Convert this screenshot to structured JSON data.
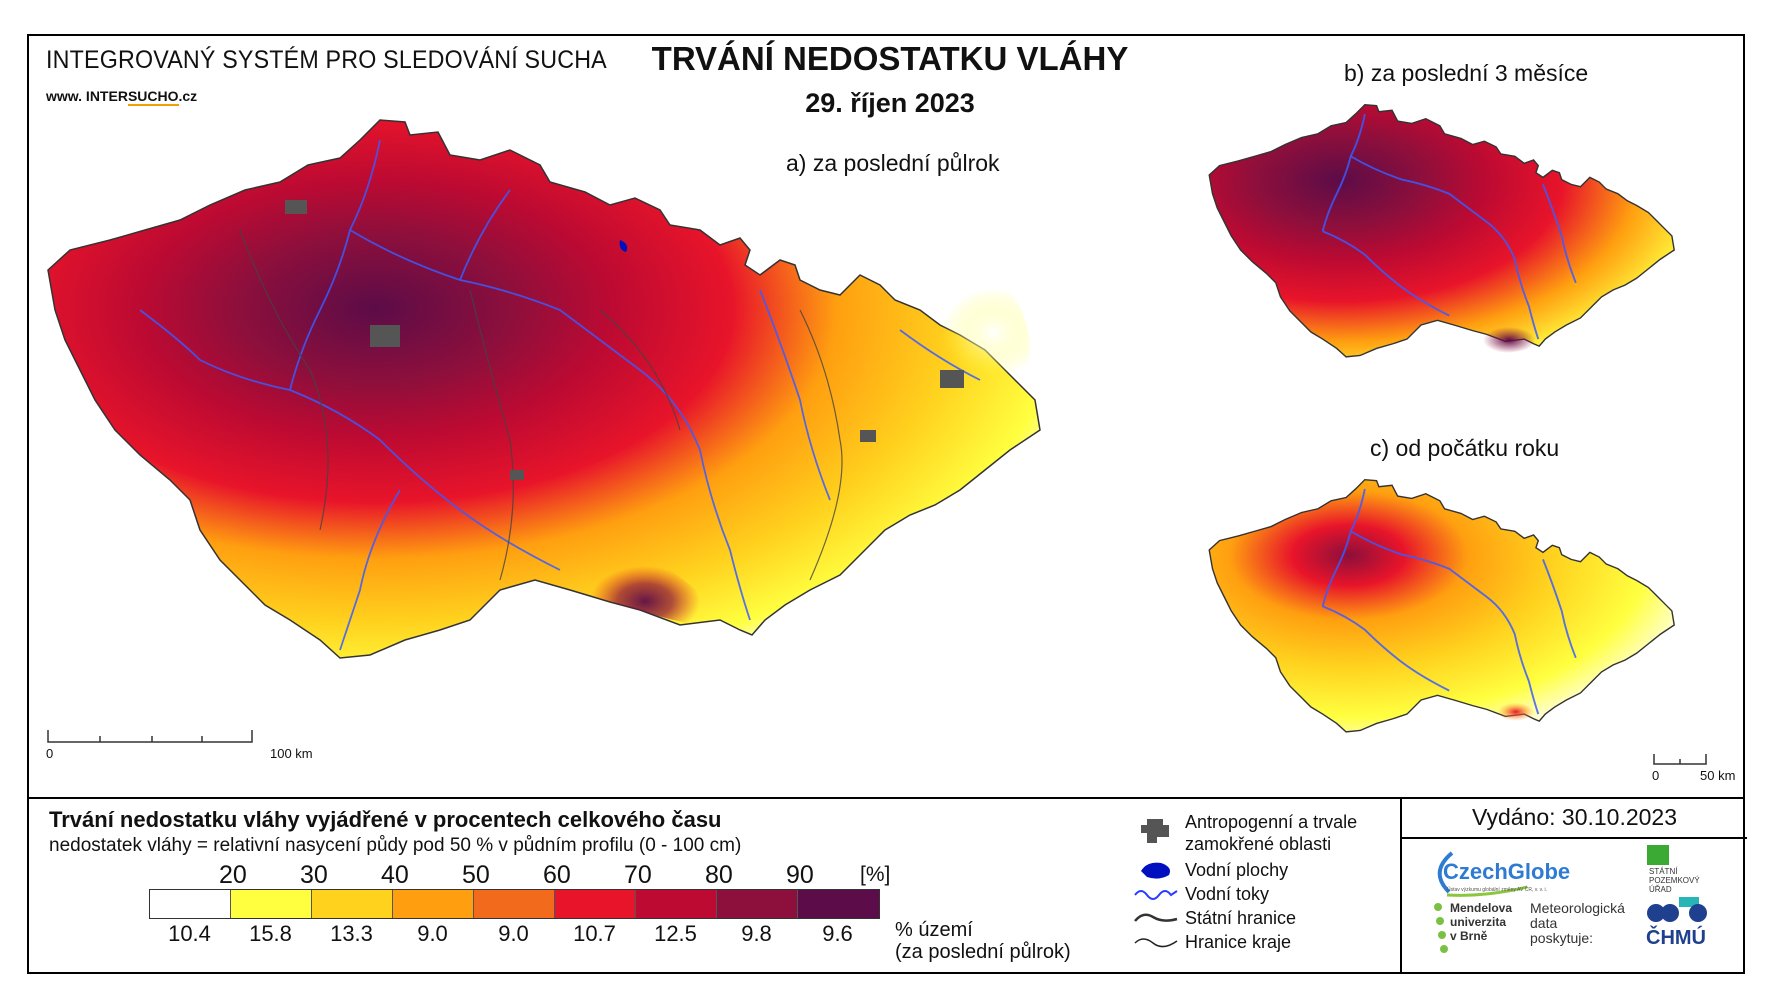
{
  "header": {
    "system_name": "INTEGROVANÝ SYSTÉM PRO SLEDOVÁNÍ SUCHA",
    "website_prefix": "www. INTER",
    "website_brand": "SUCHO",
    "website_suffix": ".cz",
    "title": "TRVÁNÍ NEDOSTATKU VLÁHY",
    "date": "29. říjen 2023"
  },
  "maps": {
    "a": {
      "label": "a) za poslední půlrok",
      "scale_start": "0",
      "scale_end": "100 km"
    },
    "b": {
      "label": "b) za poslední 3 měsíce"
    },
    "c": {
      "label": "c) od počátku roku",
      "scale_start": "0",
      "scale_end": "50 km"
    }
  },
  "legend": {
    "title": "Trvání nedostatku vláhy vyjádřené v procentech celkového času",
    "subtitle": "nedostatek vláhy = relativní nasycení půdy pod 50 % v půdním profilu (0 - 100 cm)",
    "thresholds": [
      "20",
      "30",
      "40",
      "50",
      "60",
      "70",
      "80",
      "90"
    ],
    "unit": "[%]",
    "class_colors": [
      "#ffffff",
      "#ffff40",
      "#ffd21e",
      "#ff9f10",
      "#f26a1c",
      "#e8142a",
      "#bd0a32",
      "#8c0f3c",
      "#5c0c48"
    ],
    "territory_percent": [
      "10.4",
      "15.8",
      "13.3",
      "9.0",
      "9.0",
      "10.7",
      "12.5",
      "9.8",
      "9.6"
    ],
    "territory_label_1": "% území",
    "territory_label_2": "(za poslední půlrok)"
  },
  "legend_right": {
    "anthropogenic": "Antropogenní a trvale zamokřené oblasti",
    "water_bodies": "Vodní plochy",
    "rivers": "Vodní toky",
    "state_border": "Státní hranice",
    "region_border": "Hranice kraje"
  },
  "issued": "Vydáno: 30.10.2023",
  "logos": {
    "czechglobe": "CzechGlobe",
    "czechglobe_sub": "Ústav výzkumu globální změny AV ČR, v. v. i.",
    "spu_1": "STÁTNÍ",
    "spu_2": "POZEMKOVÝ",
    "spu_3": "ÚŘAD",
    "mendel_1": "Mendelova",
    "mendel_2": "univerzita",
    "mendel_3": "v Brně",
    "meteo_1": "Meteorologická",
    "meteo_2": "data",
    "meteo_3": "poskytuje:",
    "chmu": "ČHMÚ"
  }
}
